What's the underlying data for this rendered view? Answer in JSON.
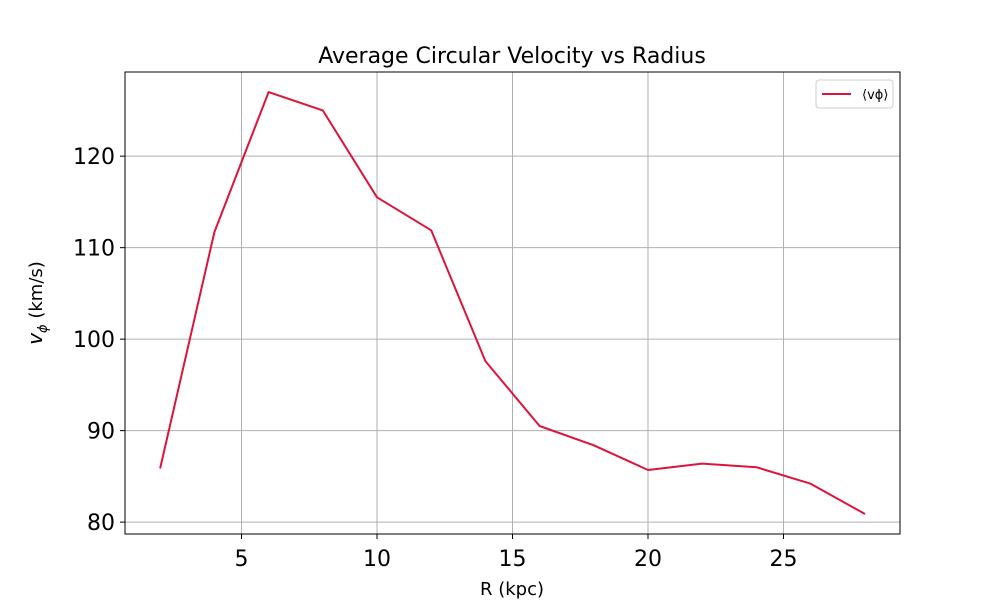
{
  "chart_data": {
    "type": "line",
    "title": "Average Circular Velocity vs Radius",
    "xlabel": "R (kpc)",
    "ylabel_main": "v",
    "ylabel_sub": "ϕ",
    "ylabel_unit": " (km/s)",
    "xlim": [
      0.7,
      29.3
    ],
    "ylim": [
      78.7,
      129.2
    ],
    "xticks": [
      5,
      10,
      15,
      20,
      25
    ],
    "yticks": [
      80,
      90,
      100,
      110,
      120
    ],
    "grid": true,
    "legend_position": "top-right",
    "series": [
      {
        "name": "⟨vϕ⟩",
        "color": "#dc143c",
        "x": [
          2,
          4,
          6,
          8,
          10,
          12,
          14,
          16,
          18,
          20,
          22,
          24,
          26,
          28
        ],
        "y": [
          85.9,
          111.7,
          127.0,
          125.0,
          115.5,
          111.9,
          97.6,
          90.5,
          88.4,
          85.7,
          86.4,
          86.0,
          84.2,
          80.9
        ]
      }
    ]
  }
}
